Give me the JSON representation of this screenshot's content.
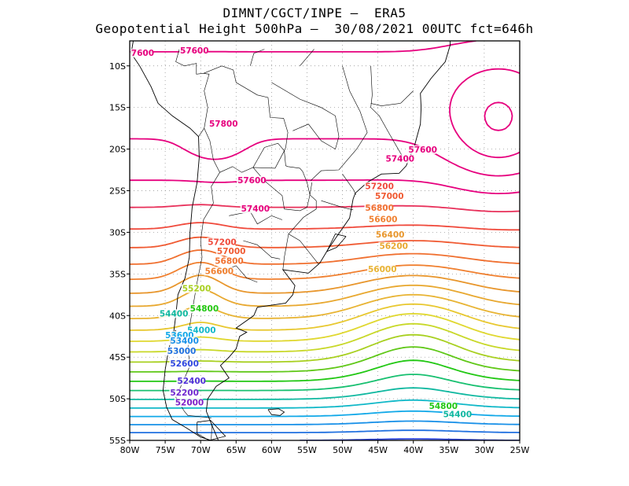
{
  "title": {
    "line1": "DIMNT/CGCT/INPE –  ERA5",
    "line2": "Geopotential Height 500hPa –  30/08/2021 00UTC fct=646h"
  },
  "axes": {
    "lon_range": [
      -80,
      -25
    ],
    "lat_range": [
      -55,
      -7
    ],
    "x_ticks": [
      "80W",
      "75W",
      "70W",
      "65W",
      "60W",
      "55W",
      "50W",
      "45W",
      "40W",
      "35W",
      "30W",
      "25W"
    ],
    "y_ticks": [
      "10S",
      "15S",
      "20S",
      "25S",
      "30S",
      "35S",
      "40S",
      "45S",
      "50S",
      "55S"
    ],
    "grid": "dotted"
  },
  "contours": {
    "interval": 200,
    "levels": [
      51800,
      52000,
      52200,
      52400,
      52600,
      52800,
      53000,
      53200,
      53400,
      53600,
      53800,
      54000,
      54200,
      54400,
      54600,
      54800,
      55000,
      55200,
      55400,
      55600,
      55800,
      56000,
      56200,
      56400,
      56600,
      56800,
      57000,
      57200,
      57400,
      57600,
      57800
    ],
    "labels": [
      {
        "text": "57600",
        "lon": -72.9,
        "lat": -8.5,
        "color": "#e6007e"
      },
      {
        "text": "7600",
        "lon": -79.8,
        "lat": -8.8,
        "color": "#e6007e"
      },
      {
        "text": "57800",
        "lon": -68.8,
        "lat": -17.3,
        "color": "#e6007e"
      },
      {
        "text": "57600",
        "lon": -40.7,
        "lat": -20.4,
        "color": "#e6007e"
      },
      {
        "text": "57400",
        "lon": -43.9,
        "lat": -21.5,
        "color": "#e6007e"
      },
      {
        "text": "57600",
        "lon": -64.8,
        "lat": -24.1,
        "color": "#e6007e"
      },
      {
        "text": "57400",
        "lon": -64.3,
        "lat": -27.5,
        "color": "#e6007e"
      },
      {
        "text": "57200",
        "lon": -46.8,
        "lat": -24.8,
        "color": "#f04a3c"
      },
      {
        "text": "57000",
        "lon": -45.4,
        "lat": -26.0,
        "color": "#f05a32"
      },
      {
        "text": "56800",
        "lon": -46.8,
        "lat": -27.4,
        "color": "#f07030"
      },
      {
        "text": "56600",
        "lon": -46.3,
        "lat": -28.8,
        "color": "#f08030"
      },
      {
        "text": "56400",
        "lon": -45.3,
        "lat": -30.6,
        "color": "#e8962c"
      },
      {
        "text": "56200",
        "lon": -44.8,
        "lat": -32.0,
        "color": "#e8a830"
      },
      {
        "text": "56000",
        "lon": -46.4,
        "lat": -34.8,
        "color": "#e8b434"
      },
      {
        "text": "57200",
        "lon": -69.0,
        "lat": -31.5,
        "color": "#f04a3c"
      },
      {
        "text": "57000",
        "lon": -67.7,
        "lat": -32.6,
        "color": "#f05a32"
      },
      {
        "text": "56800",
        "lon": -68.0,
        "lat": -33.8,
        "color": "#f07030"
      },
      {
        "text": "56600",
        "lon": -69.4,
        "lat": -35.0,
        "color": "#f08030"
      },
      {
        "text": "55200",
        "lon": -72.6,
        "lat": -37.1,
        "color": "#a8d020"
      },
      {
        "text": "54800",
        "lon": -71.5,
        "lat": -39.5,
        "color": "#22c814"
      },
      {
        "text": "54400",
        "lon": -75.8,
        "lat": -40.1,
        "color": "#10b8a0"
      },
      {
        "text": "54000",
        "lon": -71.9,
        "lat": -42.1,
        "color": "#10b8c8"
      },
      {
        "text": "53600",
        "lon": -75.0,
        "lat": -42.7,
        "color": "#10a8e8"
      },
      {
        "text": "53400",
        "lon": -74.3,
        "lat": -43.4,
        "color": "#1890e8"
      },
      {
        "text": "53000",
        "lon": -74.7,
        "lat": -44.6,
        "color": "#2070e0"
      },
      {
        "text": "52600",
        "lon": -74.3,
        "lat": -46.1,
        "color": "#3048e0"
      },
      {
        "text": "52400",
        "lon": -73.3,
        "lat": -48.2,
        "color": "#5030d8"
      },
      {
        "text": "52200",
        "lon": -74.3,
        "lat": -49.6,
        "color": "#7028d0"
      },
      {
        "text": "52000",
        "lon": -73.6,
        "lat": -50.8,
        "color": "#8020c8"
      },
      {
        "text": "54800",
        "lon": -37.8,
        "lat": -51.2,
        "color": "#22c814"
      },
      {
        "text": "54400",
        "lon": -35.8,
        "lat": -52.2,
        "color": "#10b8a0"
      }
    ]
  },
  "colors": {
    "frame": "#000000",
    "grid": "#888888",
    "map_border": "#000000"
  }
}
